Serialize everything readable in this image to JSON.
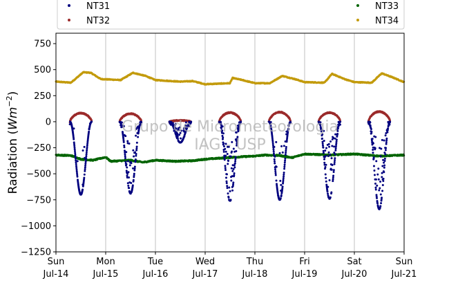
{
  "chart_data": {
    "type": "scatter",
    "ylabel_text": "Radiation (",
    "ylabel_math": "Wm",
    "ylabel_exp": "−2",
    "ylabel_close": ")",
    "ylim": [
      -1250,
      850
    ],
    "yticks": [
      -1250,
      -1000,
      -750,
      -500,
      -250,
      0,
      250,
      500,
      750
    ],
    "ytick_labels": [
      "−1250",
      "−1000",
      "−750",
      "−500",
      "−250",
      "0",
      "250",
      "500",
      "750"
    ],
    "xlim_days": [
      0,
      7
    ],
    "xticks": [
      {
        "day": 0,
        "weekday": "Sun",
        "date": "Jul-14"
      },
      {
        "day": 1,
        "weekday": "Mon",
        "date": "Jul-15"
      },
      {
        "day": 2,
        "weekday": "Tue",
        "date": "Jul-16"
      },
      {
        "day": 3,
        "weekday": "Wed",
        "date": "Jul-17"
      },
      {
        "day": 4,
        "weekday": "Thu",
        "date": "Jul-18"
      },
      {
        "day": 5,
        "weekday": "Fri",
        "date": "Jul-19"
      },
      {
        "day": 6,
        "weekday": "Sat",
        "date": "Jul-20"
      },
      {
        "day": 7,
        "weekday": "Sun",
        "date": "Jul-21"
      }
    ],
    "vertical_grid": true,
    "legend_position": "top",
    "watermark": [
      "Grupo de Micrometeorologia",
      "IAG - USP"
    ],
    "series": [
      {
        "name": "NT31",
        "color": "#00007f",
        "daily_min": [
          -700,
          -690,
          -200,
          -760,
          -750,
          -740,
          -840
        ],
        "daily_scatter": [
          0.1,
          0.35,
          0.45,
          0.5,
          0.2,
          0.4,
          0.45
        ]
      },
      {
        "name": "NT32",
        "color": "#9b2b2b",
        "daily_max": [
          85,
          80,
          15,
          90,
          95,
          90,
          100
        ]
      },
      {
        "name": "NT33",
        "color": "#006400",
        "base": -330,
        "nodes": [
          [
            0,
            -320
          ],
          [
            0.3,
            -325
          ],
          [
            0.5,
            -360
          ],
          [
            0.75,
            -370
          ],
          [
            1.0,
            -340
          ],
          [
            1.1,
            -380
          ],
          [
            1.5,
            -370
          ],
          [
            1.75,
            -390
          ],
          [
            2.0,
            -370
          ],
          [
            2.4,
            -380
          ],
          [
            2.75,
            -375
          ],
          [
            3.0,
            -360
          ],
          [
            3.3,
            -350
          ],
          [
            3.6,
            -340
          ],
          [
            4.0,
            -330
          ],
          [
            4.2,
            -320
          ],
          [
            4.5,
            -325
          ],
          [
            4.75,
            -345
          ],
          [
            5.0,
            -310
          ],
          [
            5.5,
            -320
          ],
          [
            6.0,
            -310
          ],
          [
            6.5,
            -330
          ],
          [
            7.0,
            -320
          ]
        ]
      },
      {
        "name": "NT34",
        "color": "#c39b0d",
        "nodes": [
          [
            0,
            385
          ],
          [
            0.3,
            375
          ],
          [
            0.55,
            475
          ],
          [
            0.7,
            470
          ],
          [
            0.9,
            410
          ],
          [
            1.3,
            400
          ],
          [
            1.55,
            470
          ],
          [
            1.8,
            440
          ],
          [
            2.0,
            400
          ],
          [
            2.5,
            385
          ],
          [
            2.75,
            390
          ],
          [
            3.0,
            360
          ],
          [
            3.5,
            370
          ],
          [
            3.55,
            420
          ],
          [
            3.75,
            400
          ],
          [
            4.0,
            370
          ],
          [
            4.3,
            370
          ],
          [
            4.55,
            440
          ],
          [
            4.8,
            410
          ],
          [
            5.0,
            380
          ],
          [
            5.4,
            375
          ],
          [
            5.55,
            460
          ],
          [
            5.8,
            410
          ],
          [
            6.0,
            380
          ],
          [
            6.35,
            375
          ],
          [
            6.55,
            465
          ],
          [
            6.8,
            420
          ],
          [
            7.0,
            380
          ]
        ]
      }
    ]
  }
}
